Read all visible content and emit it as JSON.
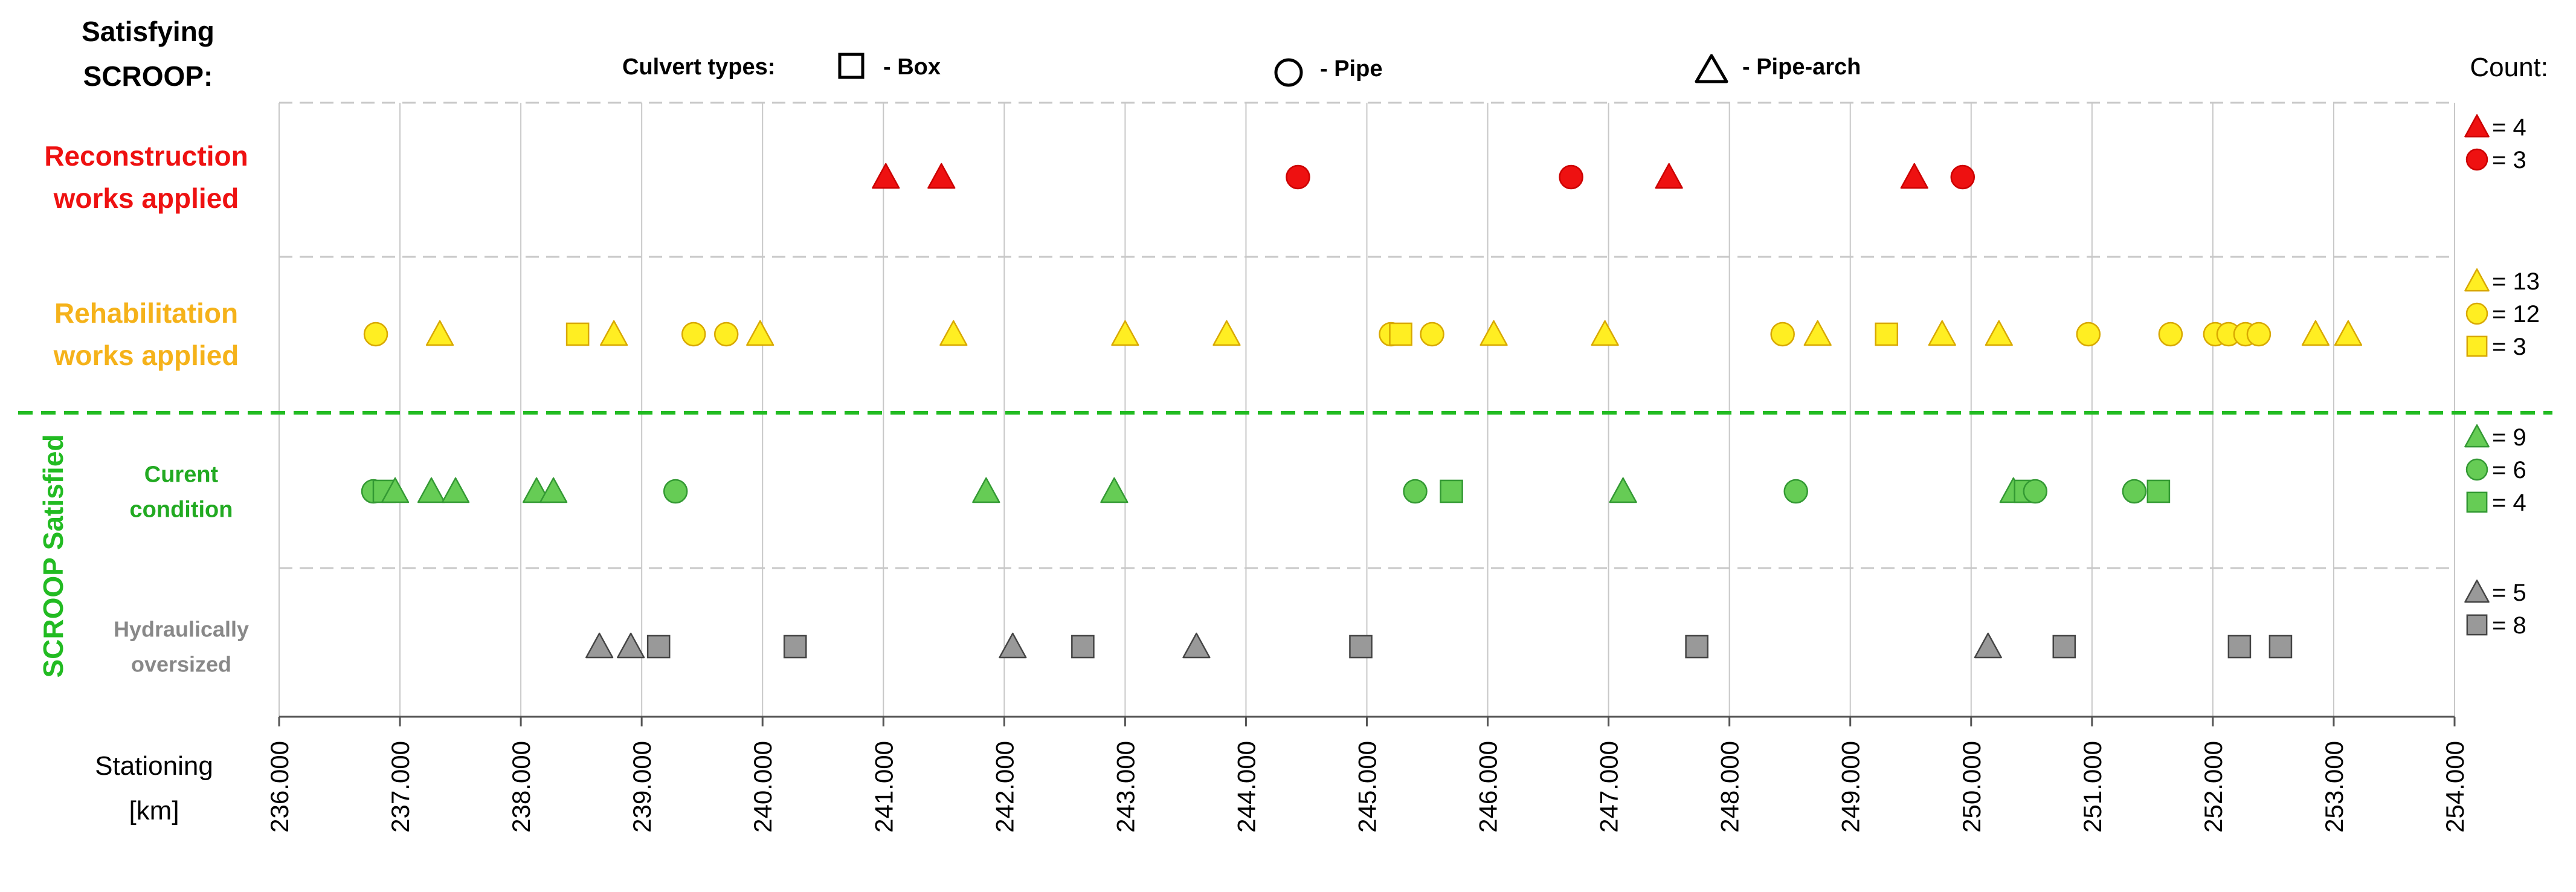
{
  "colors": {
    "reconstruction": "#ee1111",
    "rehabilitation": "#ffee22",
    "rehabilitation_text": "#f5b21a",
    "current": "#66cc55",
    "current_text": "#22aa22",
    "oversized": "#999999",
    "oversized_text": "#888888",
    "satisfied_line": "#22bb22",
    "grid": "#c8c8c8",
    "stroke_red": "#cc0000",
    "stroke_yellow": "#d8a800",
    "stroke_green": "#339933",
    "stroke_gray": "#444444"
  },
  "header": {
    "satisfying_line1": "Satisfying",
    "satisfying_line2": "SCROOP:",
    "culvert_types_label": "Culvert types:",
    "box_label": "- Box",
    "pipe_label": "- Pipe",
    "pipearch_label": "- Pipe-arch",
    "count_label": "Count:",
    "scroop_satisfied_label": "SCROOP Satisfied",
    "box_icon": "square-outline",
    "pipe_icon": "circle-outline",
    "pipearch_icon": "triangle-outline"
  },
  "chart_data": {
    "type": "scatter",
    "title": "",
    "xlabel": "Stationing [km]",
    "xlabel_line1": "Stationing",
    "xlabel_line2": "[km]",
    "xlim": [
      236.0,
      254.0
    ],
    "xticks": [
      "236.000",
      "237.000",
      "238.000",
      "239.000",
      "240.000",
      "241.000",
      "242.000",
      "243.000",
      "244.000",
      "245.000",
      "246.000",
      "247.000",
      "248.000",
      "249.000",
      "250.000",
      "251.000",
      "252.000",
      "253.000",
      "254.000"
    ],
    "grid": true,
    "rows": [
      {
        "key": "reconstruction",
        "label_lines": [
          "Reconstruction",
          "works applied"
        ],
        "color_key": "reconstruction",
        "text_color_key": "reconstruction",
        "stroke_key": "stroke_red",
        "points": [
          {
            "x": 241.02,
            "shape": "pipe-arch"
          },
          {
            "x": 241.48,
            "shape": "pipe-arch"
          },
          {
            "x": 244.43,
            "shape": "pipe"
          },
          {
            "x": 246.69,
            "shape": "pipe"
          },
          {
            "x": 247.5,
            "shape": "pipe-arch"
          },
          {
            "x": 249.53,
            "shape": "pipe-arch"
          },
          {
            "x": 249.93,
            "shape": "pipe"
          }
        ],
        "counts": [
          {
            "shape": "pipe-arch",
            "label": "= 4"
          },
          {
            "shape": "pipe",
            "label": "= 3"
          }
        ]
      },
      {
        "key": "rehabilitation",
        "label_lines": [
          "Rehabilitation",
          "works applied"
        ],
        "color_key": "rehabilitation",
        "text_color_key": "rehabilitation_text",
        "stroke_key": "stroke_yellow",
        "points": [
          {
            "x": 236.8,
            "shape": "pipe"
          },
          {
            "x": 237.33,
            "shape": "pipe-arch"
          },
          {
            "x": 238.47,
            "shape": "box"
          },
          {
            "x": 238.77,
            "shape": "pipe-arch"
          },
          {
            "x": 239.43,
            "shape": "pipe"
          },
          {
            "x": 239.7,
            "shape": "pipe"
          },
          {
            "x": 239.98,
            "shape": "pipe-arch"
          },
          {
            "x": 241.58,
            "shape": "pipe-arch"
          },
          {
            "x": 243.0,
            "shape": "pipe-arch"
          },
          {
            "x": 243.84,
            "shape": "pipe-arch"
          },
          {
            "x": 245.2,
            "shape": "pipe"
          },
          {
            "x": 245.28,
            "shape": "box"
          },
          {
            "x": 245.54,
            "shape": "pipe"
          },
          {
            "x": 246.05,
            "shape": "pipe-arch"
          },
          {
            "x": 246.97,
            "shape": "pipe-arch"
          },
          {
            "x": 248.44,
            "shape": "pipe"
          },
          {
            "x": 248.73,
            "shape": "pipe-arch"
          },
          {
            "x": 249.3,
            "shape": "box"
          },
          {
            "x": 249.76,
            "shape": "pipe-arch"
          },
          {
            "x": 250.23,
            "shape": "pipe-arch"
          },
          {
            "x": 250.97,
            "shape": "pipe"
          },
          {
            "x": 251.65,
            "shape": "pipe"
          },
          {
            "x": 252.02,
            "shape": "pipe"
          },
          {
            "x": 252.13,
            "shape": "pipe"
          },
          {
            "x": 252.27,
            "shape": "pipe"
          },
          {
            "x": 252.38,
            "shape": "pipe"
          },
          {
            "x": 252.85,
            "shape": "pipe-arch"
          },
          {
            "x": 253.12,
            "shape": "pipe-arch"
          }
        ],
        "counts": [
          {
            "shape": "pipe-arch",
            "label": "= 13"
          },
          {
            "shape": "pipe",
            "label": "= 12"
          },
          {
            "shape": "box",
            "label": "= 3"
          }
        ]
      },
      {
        "key": "current",
        "label_lines": [
          "Curent",
          "condition"
        ],
        "color_key": "current",
        "text_color_key": "current_text",
        "stroke_key": "stroke_green",
        "points": [
          {
            "x": 236.78,
            "shape": "pipe"
          },
          {
            "x": 236.87,
            "shape": "box"
          },
          {
            "x": 236.96,
            "shape": "pipe-arch"
          },
          {
            "x": 237.26,
            "shape": "pipe-arch"
          },
          {
            "x": 237.46,
            "shape": "pipe-arch"
          },
          {
            "x": 238.13,
            "shape": "pipe-arch"
          },
          {
            "x": 238.27,
            "shape": "pipe-arch"
          },
          {
            "x": 239.28,
            "shape": "pipe"
          },
          {
            "x": 241.85,
            "shape": "pipe-arch"
          },
          {
            "x": 242.91,
            "shape": "pipe-arch"
          },
          {
            "x": 245.4,
            "shape": "pipe"
          },
          {
            "x": 245.7,
            "shape": "box"
          },
          {
            "x": 247.12,
            "shape": "pipe-arch"
          },
          {
            "x": 248.55,
            "shape": "pipe"
          },
          {
            "x": 250.35,
            "shape": "pipe-arch"
          },
          {
            "x": 250.45,
            "shape": "box"
          },
          {
            "x": 250.53,
            "shape": "pipe"
          },
          {
            "x": 251.35,
            "shape": "pipe"
          },
          {
            "x": 251.55,
            "shape": "box"
          }
        ],
        "counts": [
          {
            "shape": "pipe-arch",
            "label": "= 9"
          },
          {
            "shape": "pipe",
            "label": "= 6"
          },
          {
            "shape": "box",
            "label": "= 4"
          }
        ]
      },
      {
        "key": "oversized",
        "label_lines": [
          "Hydraulically",
          "oversized"
        ],
        "color_key": "oversized",
        "text_color_key": "oversized_text",
        "stroke_key": "stroke_gray",
        "points": [
          {
            "x": 238.65,
            "shape": "pipe-arch"
          },
          {
            "x": 238.91,
            "shape": "pipe-arch"
          },
          {
            "x": 239.14,
            "shape": "box"
          },
          {
            "x": 240.27,
            "shape": "box"
          },
          {
            "x": 242.07,
            "shape": "pipe-arch"
          },
          {
            "x": 242.65,
            "shape": "box"
          },
          {
            "x": 243.59,
            "shape": "pipe-arch"
          },
          {
            "x": 244.95,
            "shape": "box"
          },
          {
            "x": 247.73,
            "shape": "box"
          },
          {
            "x": 250.14,
            "shape": "pipe-arch"
          },
          {
            "x": 250.77,
            "shape": "box"
          },
          {
            "x": 252.22,
            "shape": "box"
          },
          {
            "x": 252.56,
            "shape": "box"
          }
        ],
        "counts": [
          {
            "shape": "pipe-arch",
            "label": "= 5"
          },
          {
            "shape": "box",
            "label": "= 8"
          }
        ]
      }
    ]
  }
}
